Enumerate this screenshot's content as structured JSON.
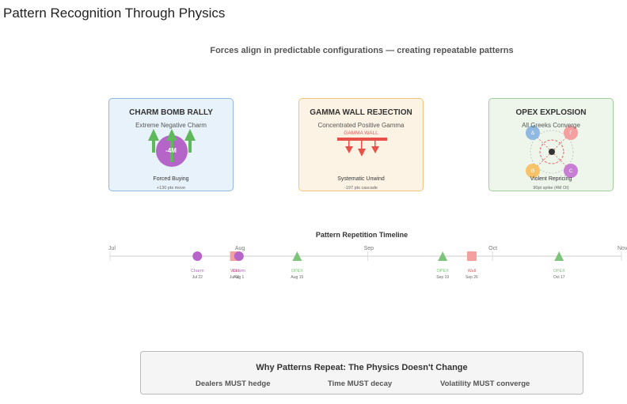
{
  "page_title": "Pattern Recognition Through Physics",
  "subtitle": "Forces align in predictable configurations — creating repeatable patterns",
  "cards": [
    {
      "title": "CHARM BOMB RALLY",
      "subtitle": "Extreme Negative Charm",
      "figure_label": "-4M",
      "footer": "Forced Buying",
      "note": "+130 pts move",
      "accent": "#b565c7"
    },
    {
      "title": "GAMMA WALL REJECTION",
      "subtitle": "Concentrated Positive Gamma",
      "figure_label": "GAMMA WALL",
      "footer": "Systematic Unwind",
      "note": "-197 pts cascade",
      "accent": "#e8514a"
    },
    {
      "title": "OPEX EXPLOSION",
      "subtitle": "All Greeks Converge",
      "greeks": [
        "Δ",
        "Γ",
        "Θ",
        "C"
      ],
      "footer": "Violent Repricing",
      "note": "90pt spike (4M OI)",
      "accent": "#e06666"
    }
  ],
  "timeline": {
    "title": "Pattern Repetition Timeline",
    "months": [
      "Jul",
      "Aug",
      "Sep",
      "Oct",
      "Nov"
    ],
    "events": [
      {
        "type": "Charm",
        "date": "Jul 22",
        "day": 21
      },
      {
        "type": "Wall",
        "date": "Jul 31",
        "day": 30
      },
      {
        "type": "Charm",
        "date": "Aug 1",
        "day": 31
      },
      {
        "type": "OPEX",
        "date": "Aug 15",
        "day": 45
      },
      {
        "type": "OPEX",
        "date": "Sep 19",
        "day": 80
      },
      {
        "type": "Wall",
        "date": "Sep 26",
        "day": 87
      },
      {
        "type": "OPEX",
        "date": "Oct 17",
        "day": 108
      }
    ],
    "colors": {
      "Charm": "#b565c7",
      "Wall": "#f4a0a0",
      "OPEX": "#7dc47a"
    }
  },
  "summary": {
    "title": "Why Patterns Repeat: The Physics Doesn't Change",
    "items": [
      "Dealers MUST hedge",
      "Time MUST decay",
      "Volatility MUST converge"
    ]
  }
}
